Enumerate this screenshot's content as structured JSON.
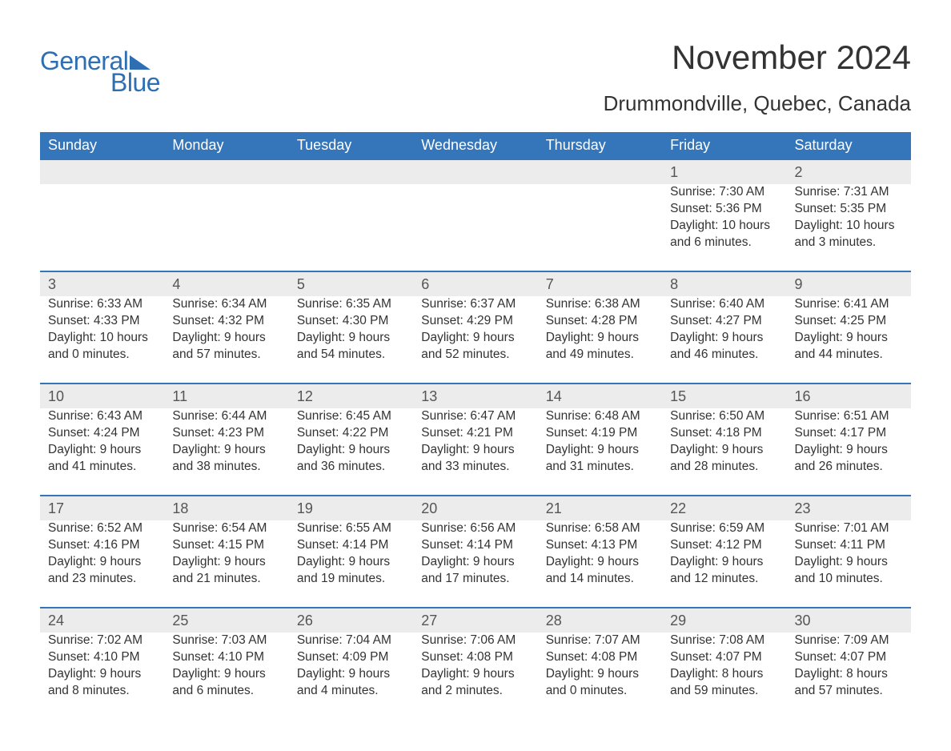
{
  "logo": {
    "text_top": "General",
    "text_bottom": "Blue"
  },
  "title": "November 2024",
  "location": "Drummondville, Quebec, Canada",
  "colors": {
    "header_bg": "#3575b9",
    "header_text": "#ffffff",
    "daynum_bg": "#ececec",
    "border_top": "#3575b9",
    "body_text": "#333333",
    "logo_color": "#2e6fb3"
  },
  "fonts": {
    "title_size_pt": 32,
    "location_size_pt": 20,
    "header_size_pt": 14,
    "cell_size_pt": 12
  },
  "weekdays": [
    "Sunday",
    "Monday",
    "Tuesday",
    "Wednesday",
    "Thursday",
    "Friday",
    "Saturday"
  ],
  "labels": {
    "sunrise_prefix": "Sunrise: ",
    "sunset_prefix": "Sunset: ",
    "daylight_prefix": "Daylight: "
  },
  "weeks": [
    [
      null,
      null,
      null,
      null,
      null,
      {
        "day": "1",
        "sunrise": "7:30 AM",
        "sunset": "5:36 PM",
        "daylight": "10 hours and 6 minutes."
      },
      {
        "day": "2",
        "sunrise": "7:31 AM",
        "sunset": "5:35 PM",
        "daylight": "10 hours and 3 minutes."
      }
    ],
    [
      {
        "day": "3",
        "sunrise": "6:33 AM",
        "sunset": "4:33 PM",
        "daylight": "10 hours and 0 minutes."
      },
      {
        "day": "4",
        "sunrise": "6:34 AM",
        "sunset": "4:32 PM",
        "daylight": "9 hours and 57 minutes."
      },
      {
        "day": "5",
        "sunrise": "6:35 AM",
        "sunset": "4:30 PM",
        "daylight": "9 hours and 54 minutes."
      },
      {
        "day": "6",
        "sunrise": "6:37 AM",
        "sunset": "4:29 PM",
        "daylight": "9 hours and 52 minutes."
      },
      {
        "day": "7",
        "sunrise": "6:38 AM",
        "sunset": "4:28 PM",
        "daylight": "9 hours and 49 minutes."
      },
      {
        "day": "8",
        "sunrise": "6:40 AM",
        "sunset": "4:27 PM",
        "daylight": "9 hours and 46 minutes."
      },
      {
        "day": "9",
        "sunrise": "6:41 AM",
        "sunset": "4:25 PM",
        "daylight": "9 hours and 44 minutes."
      }
    ],
    [
      {
        "day": "10",
        "sunrise": "6:43 AM",
        "sunset": "4:24 PM",
        "daylight": "9 hours and 41 minutes."
      },
      {
        "day": "11",
        "sunrise": "6:44 AM",
        "sunset": "4:23 PM",
        "daylight": "9 hours and 38 minutes."
      },
      {
        "day": "12",
        "sunrise": "6:45 AM",
        "sunset": "4:22 PM",
        "daylight": "9 hours and 36 minutes."
      },
      {
        "day": "13",
        "sunrise": "6:47 AM",
        "sunset": "4:21 PM",
        "daylight": "9 hours and 33 minutes."
      },
      {
        "day": "14",
        "sunrise": "6:48 AM",
        "sunset": "4:19 PM",
        "daylight": "9 hours and 31 minutes."
      },
      {
        "day": "15",
        "sunrise": "6:50 AM",
        "sunset": "4:18 PM",
        "daylight": "9 hours and 28 minutes."
      },
      {
        "day": "16",
        "sunrise": "6:51 AM",
        "sunset": "4:17 PM",
        "daylight": "9 hours and 26 minutes."
      }
    ],
    [
      {
        "day": "17",
        "sunrise": "6:52 AM",
        "sunset": "4:16 PM",
        "daylight": "9 hours and 23 minutes."
      },
      {
        "day": "18",
        "sunrise": "6:54 AM",
        "sunset": "4:15 PM",
        "daylight": "9 hours and 21 minutes."
      },
      {
        "day": "19",
        "sunrise": "6:55 AM",
        "sunset": "4:14 PM",
        "daylight": "9 hours and 19 minutes."
      },
      {
        "day": "20",
        "sunrise": "6:56 AM",
        "sunset": "4:14 PM",
        "daylight": "9 hours and 17 minutes."
      },
      {
        "day": "21",
        "sunrise": "6:58 AM",
        "sunset": "4:13 PM",
        "daylight": "9 hours and 14 minutes."
      },
      {
        "day": "22",
        "sunrise": "6:59 AM",
        "sunset": "4:12 PM",
        "daylight": "9 hours and 12 minutes."
      },
      {
        "day": "23",
        "sunrise": "7:01 AM",
        "sunset": "4:11 PM",
        "daylight": "9 hours and 10 minutes."
      }
    ],
    [
      {
        "day": "24",
        "sunrise": "7:02 AM",
        "sunset": "4:10 PM",
        "daylight": "9 hours and 8 minutes."
      },
      {
        "day": "25",
        "sunrise": "7:03 AM",
        "sunset": "4:10 PM",
        "daylight": "9 hours and 6 minutes."
      },
      {
        "day": "26",
        "sunrise": "7:04 AM",
        "sunset": "4:09 PM",
        "daylight": "9 hours and 4 minutes."
      },
      {
        "day": "27",
        "sunrise": "7:06 AM",
        "sunset": "4:08 PM",
        "daylight": "9 hours and 2 minutes."
      },
      {
        "day": "28",
        "sunrise": "7:07 AM",
        "sunset": "4:08 PM",
        "daylight": "9 hours and 0 minutes."
      },
      {
        "day": "29",
        "sunrise": "7:08 AM",
        "sunset": "4:07 PM",
        "daylight": "8 hours and 59 minutes."
      },
      {
        "day": "30",
        "sunrise": "7:09 AM",
        "sunset": "4:07 PM",
        "daylight": "8 hours and 57 minutes."
      }
    ]
  ]
}
